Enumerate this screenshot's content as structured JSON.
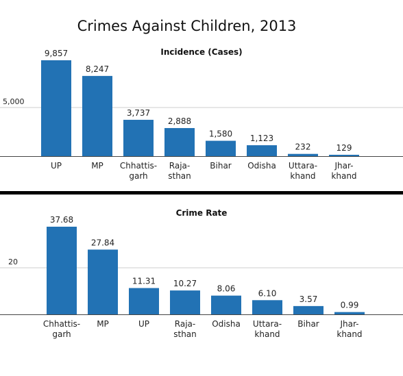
{
  "title": "Crimes Against Children, 2013",
  "colors": {
    "bar": "#2272b4",
    "grid": "#cccccc",
    "axis": "#444444"
  },
  "chart_data": [
    {
      "type": "bar",
      "title": "Incidence (Cases)",
      "categories": [
        [
          "UP"
        ],
        [
          "MP"
        ],
        [
          "Chhattis-",
          "garh"
        ],
        [
          "Raja-",
          "sthan"
        ],
        [
          "Bihar"
        ],
        [
          "Odisha"
        ],
        [
          "Uttara-",
          "khand"
        ],
        [
          "Jhar-",
          "khand"
        ]
      ],
      "values": [
        9857,
        8247,
        3737,
        2888,
        1580,
        1123,
        232,
        129
      ],
      "value_labels": [
        "9,857",
        "8,247",
        "3,737",
        "2,888",
        "1,580",
        "1,123",
        "232",
        "129"
      ],
      "yticks": [
        {
          "value": 5000,
          "label": "5,000"
        }
      ],
      "ylim": [
        0,
        11000
      ],
      "grid": true
    },
    {
      "type": "bar",
      "title": "Crime Rate",
      "categories": [
        [
          "Chhattis-",
          "garh"
        ],
        [
          "MP"
        ],
        [
          "UP"
        ],
        [
          "Raja-",
          "sthan"
        ],
        [
          "Odisha"
        ],
        [
          "Uttara-",
          "khand"
        ],
        [
          "Bihar"
        ],
        [
          "Jhar-",
          "khand"
        ]
      ],
      "values": [
        37.68,
        27.84,
        11.31,
        10.27,
        8.06,
        6.1,
        3.57,
        0.99
      ],
      "value_labels": [
        "37.68",
        "27.84",
        "11.31",
        "10.27",
        "8.06",
        "6.10",
        "3.57",
        "0.99"
      ],
      "yticks": [
        {
          "value": 20,
          "label": "20"
        }
      ],
      "ylim": [
        0,
        44
      ],
      "grid": true
    }
  ]
}
